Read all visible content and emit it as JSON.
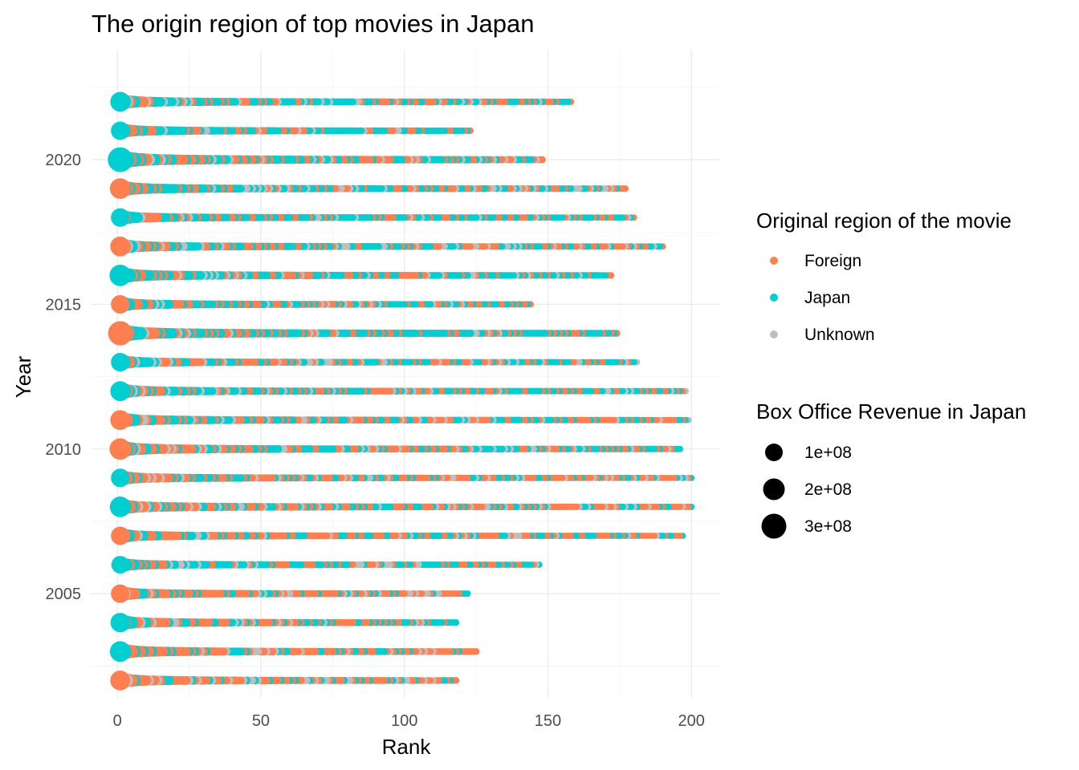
{
  "chart_data": {
    "type": "scatter",
    "title": "The origin region of top movies in Japan",
    "xlabel": "Rank",
    "ylabel": "Year",
    "xlim": [
      -9,
      210
    ],
    "ylim": [
      2023.8,
      2001.4
    ],
    "y_reversed": true,
    "grid": true,
    "x_ticks": [
      0,
      50,
      100,
      150,
      200
    ],
    "x_tick_labels": [
      "0",
      "50",
      "100",
      "150",
      "200"
    ],
    "y_ticks": [
      2005,
      2010,
      2015,
      2020
    ],
    "y_tick_labels": [
      "2005",
      "2010",
      "2015",
      "2020"
    ],
    "colors": {
      "Foreign": "#FF7F50",
      "Japan": "#00CED1",
      "Unknown": "#BEBEBE"
    },
    "legend_placement": "right",
    "legends": {
      "color": {
        "title": "Original region of the movie",
        "entries": [
          "Foreign",
          "Japan",
          "Unknown"
        ]
      },
      "size": {
        "title": "Box Office Revenue in Japan",
        "entries": [
          {
            "label": "1e+08",
            "value": 100000000
          },
          {
            "label": "2e+08",
            "value": 200000000
          },
          {
            "label": "3e+08",
            "value": 300000000
          }
        ]
      }
    },
    "series": [
      {
        "year": 2002,
        "max_rank": 118,
        "top_revenue": 180000000,
        "first": "Foreign",
        "mix": [
          0.62,
          0.25,
          0.13
        ]
      },
      {
        "year": 2003,
        "max_rank": 125,
        "top_revenue": 200000000,
        "first": "Japan",
        "mix": [
          0.62,
          0.26,
          0.12
        ]
      },
      {
        "year": 2004,
        "max_rank": 118,
        "top_revenue": 170000000,
        "first": "Japan",
        "mix": [
          0.55,
          0.34,
          0.11
        ]
      },
      {
        "year": 2005,
        "max_rank": 122,
        "top_revenue": 150000000,
        "first": "Foreign",
        "mix": [
          0.62,
          0.26,
          0.12
        ]
      },
      {
        "year": 2006,
        "max_rank": 147,
        "top_revenue": 130000000,
        "first": "Japan",
        "mix": [
          0.4,
          0.45,
          0.15
        ]
      },
      {
        "year": 2007,
        "max_rank": 197,
        "top_revenue": 150000000,
        "first": "Foreign",
        "mix": [
          0.5,
          0.38,
          0.12
        ]
      },
      {
        "year": 2008,
        "max_rank": 200,
        "top_revenue": 200000000,
        "first": "Japan",
        "mix": [
          0.52,
          0.32,
          0.16
        ]
      },
      {
        "year": 2009,
        "max_rank": 200,
        "top_revenue": 150000000,
        "first": "Japan",
        "mix": [
          0.5,
          0.36,
          0.14
        ]
      },
      {
        "year": 2010,
        "max_rank": 196,
        "top_revenue": 220000000,
        "first": "Foreign",
        "mix": [
          0.46,
          0.42,
          0.12
        ]
      },
      {
        "year": 2011,
        "max_rank": 199,
        "top_revenue": 180000000,
        "first": "Foreign",
        "mix": [
          0.46,
          0.42,
          0.12
        ]
      },
      {
        "year": 2012,
        "max_rank": 198,
        "top_revenue": 180000000,
        "first": "Japan",
        "mix": [
          0.38,
          0.5,
          0.12
        ]
      },
      {
        "year": 2013,
        "max_rank": 181,
        "top_revenue": 150000000,
        "first": "Japan",
        "mix": [
          0.4,
          0.47,
          0.13
        ]
      },
      {
        "year": 2014,
        "max_rank": 174,
        "top_revenue": 300000000,
        "first": "Foreign",
        "mix": [
          0.35,
          0.53,
          0.12
        ]
      },
      {
        "year": 2015,
        "max_rank": 144,
        "top_revenue": 150000000,
        "first": "Foreign",
        "mix": [
          0.38,
          0.49,
          0.13
        ]
      },
      {
        "year": 2016,
        "max_rank": 172,
        "top_revenue": 220000000,
        "first": "Japan",
        "mix": [
          0.42,
          0.46,
          0.12
        ]
      },
      {
        "year": 2017,
        "max_rank": 190,
        "top_revenue": 180000000,
        "first": "Foreign",
        "mix": [
          0.4,
          0.48,
          0.12
        ]
      },
      {
        "year": 2018,
        "max_rank": 180,
        "top_revenue": 150000000,
        "first": "Japan",
        "mix": [
          0.36,
          0.5,
          0.14
        ]
      },
      {
        "year": 2019,
        "max_rank": 177,
        "top_revenue": 200000000,
        "first": "Foreign",
        "mix": [
          0.36,
          0.48,
          0.16
        ]
      },
      {
        "year": 2020,
        "max_rank": 148,
        "top_revenue": 320000000,
        "first": "Japan",
        "mix": [
          0.4,
          0.47,
          0.13
        ]
      },
      {
        "year": 2021,
        "max_rank": 123,
        "top_revenue": 150000000,
        "first": "Japan",
        "mix": [
          0.28,
          0.6,
          0.12
        ]
      },
      {
        "year": 2022,
        "max_rank": 158,
        "top_revenue": 180000000,
        "first": "Japan",
        "mix": [
          0.32,
          0.55,
          0.13
        ]
      }
    ]
  }
}
